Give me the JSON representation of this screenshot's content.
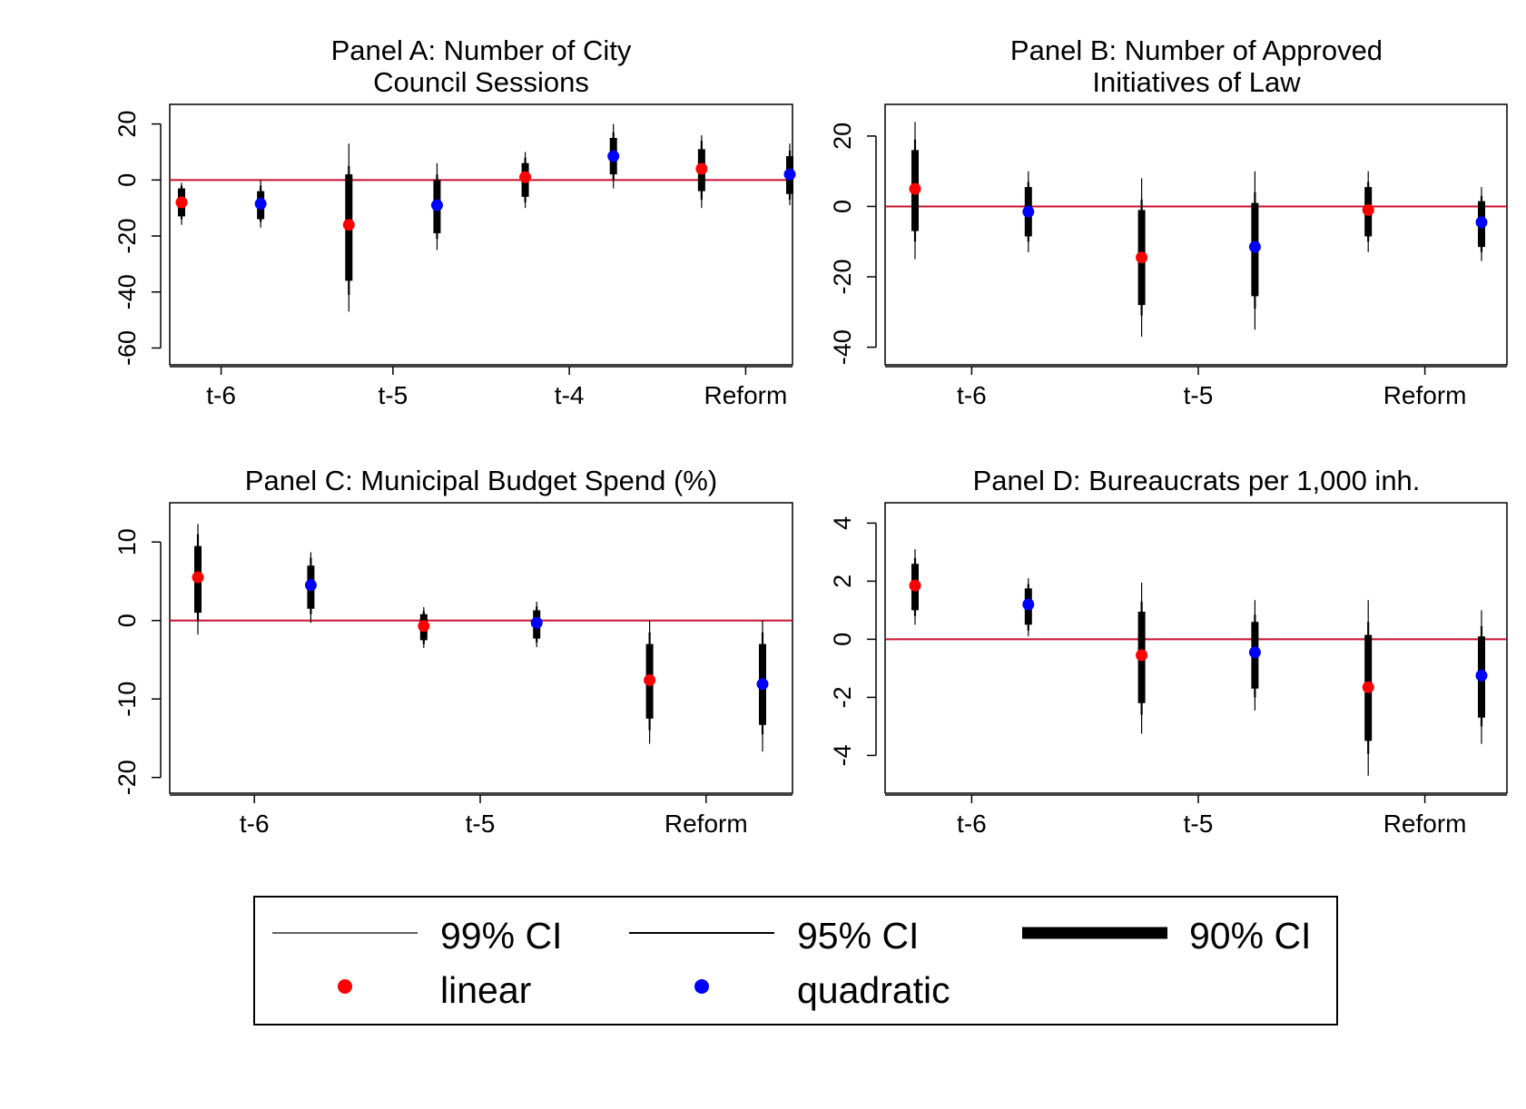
{
  "chart_data": [
    {
      "id": "A",
      "type": "coefficient-plot",
      "title": [
        "Panel A: Number of City",
        "Council Sessions"
      ],
      "xlabel": "",
      "ylabel": "",
      "categories": [
        "t-6",
        "t-5",
        "t-4",
        "Reform"
      ],
      "yticks": [
        20,
        0,
        -20,
        -40,
        -60
      ],
      "ylim": [
        -66,
        27
      ],
      "zero_line": 0,
      "series": [
        {
          "name": "linear",
          "color": "#ff0000",
          "points": [
            {
              "estimate": -8,
              "ci90": [
                -13,
                -3
              ],
              "ci95": [
                -14,
                -2
              ],
              "ci99": [
                -16,
                -1
              ]
            },
            {
              "estimate": -16,
              "ci90": [
                -36,
                2
              ],
              "ci95": [
                -41,
                5
              ],
              "ci99": [
                -47,
                13
              ]
            },
            {
              "estimate": 1,
              "ci90": [
                -6,
                6
              ],
              "ci95": [
                -8,
                8
              ],
              "ci99": [
                -10,
                10
              ]
            },
            {
              "estimate": 4,
              "ci90": [
                -4,
                11
              ],
              "ci95": [
                -7,
                14
              ],
              "ci99": [
                -10,
                16
              ]
            }
          ]
        },
        {
          "name": "quadratic",
          "color": "#0000ff",
          "points": [
            {
              "estimate": -8.5,
              "ci90": [
                -14,
                -4
              ],
              "ci95": [
                -15,
                -2
              ],
              "ci99": [
                -17,
                0
              ]
            },
            {
              "estimate": -9,
              "ci90": [
                -19,
                0
              ],
              "ci95": [
                -21,
                2
              ],
              "ci99": [
                -25,
                6
              ]
            },
            {
              "estimate": 8.5,
              "ci90": [
                2,
                15
              ],
              "ci95": [
                0,
                17
              ],
              "ci99": [
                -3,
                20
              ]
            },
            {
              "estimate": 2,
              "ci90": [
                -5,
                8.5
              ],
              "ci95": [
                -7,
                10.5
              ],
              "ci99": [
                -9,
                13
              ]
            }
          ]
        }
      ]
    },
    {
      "id": "B",
      "type": "coefficient-plot",
      "title": [
        "Panel B: Number of Approved",
        "Initiatives of Law"
      ],
      "xlabel": "",
      "ylabel": "",
      "categories": [
        "t-6",
        "t-5",
        "Reform"
      ],
      "yticks": [
        20,
        0,
        -20,
        -40
      ],
      "ylim": [
        -45,
        29
      ],
      "zero_line": 0,
      "series": [
        {
          "name": "linear",
          "color": "#ff0000",
          "points": [
            {
              "estimate": 5,
              "ci90": [
                -7,
                16
              ],
              "ci95": [
                -10,
                19
              ],
              "ci99": [
                -15,
                24
              ]
            },
            {
              "estimate": -14.5,
              "ci90": [
                -28,
                -1
              ],
              "ci95": [
                -31,
                2
              ],
              "ci99": [
                -37,
                8
              ]
            },
            {
              "estimate": -1,
              "ci90": [
                -8.5,
                5.5
              ],
              "ci95": [
                -10,
                7
              ],
              "ci99": [
                -13,
                10
              ]
            }
          ]
        },
        {
          "name": "quadratic",
          "color": "#0000ff",
          "points": [
            {
              "estimate": -1.5,
              "ci90": [
                -8.5,
                5.5
              ],
              "ci95": [
                -10,
                7
              ],
              "ci99": [
                -13,
                10
              ]
            },
            {
              "estimate": -11.5,
              "ci90": [
                -25.5,
                1
              ],
              "ci95": [
                -29,
                4
              ],
              "ci99": [
                -35,
                10
              ]
            },
            {
              "estimate": -4.5,
              "ci90": [
                -11.5,
                1.5
              ],
              "ci95": [
                -13,
                3
              ],
              "ci99": [
                -15.5,
                5.5
              ]
            }
          ]
        }
      ]
    },
    {
      "id": "C",
      "type": "coefficient-plot",
      "title": [
        "Panel C: Municipal Budget Spend (%)"
      ],
      "xlabel": "",
      "ylabel": "",
      "categories": [
        "t-6",
        "t-5",
        "Reform"
      ],
      "yticks": [
        10,
        0,
        -10,
        -20
      ],
      "ylim": [
        -22,
        15
      ],
      "zero_line": 0,
      "series": [
        {
          "name": "linear",
          "color": "#ff0000",
          "points": [
            {
              "estimate": 5.5,
              "ci90": [
                1,
                9.5
              ],
              "ci95": [
                0,
                11
              ],
              "ci99": [
                -1.8,
                12.3
              ]
            },
            {
              "estimate": -0.7,
              "ci90": [
                -2.5,
                0.8
              ],
              "ci95": [
                -3,
                1.2
              ],
              "ci99": [
                -3.5,
                1.7
              ]
            },
            {
              "estimate": -7.6,
              "ci90": [
                -12.5,
                -3
              ],
              "ci95": [
                -14,
                -1.5
              ],
              "ci99": [
                -15.7,
                0
              ]
            }
          ]
        },
        {
          "name": "quadratic",
          "color": "#0000ff",
          "points": [
            {
              "estimate": 4.5,
              "ci90": [
                1.5,
                7
              ],
              "ci95": [
                0.8,
                8
              ],
              "ci99": [
                -0.3,
                8.7
              ]
            },
            {
              "estimate": -0.3,
              "ci90": [
                -2.3,
                1.3
              ],
              "ci95": [
                -2.8,
                1.8
              ],
              "ci99": [
                -3.4,
                2.4
              ]
            },
            {
              "estimate": -8.1,
              "ci90": [
                -13.3,
                -3
              ],
              "ci95": [
                -14.5,
                -1.5
              ],
              "ci99": [
                -16.7,
                0
              ]
            }
          ]
        }
      ]
    },
    {
      "id": "D",
      "type": "coefficient-plot",
      "title": [
        "Panel D: Bureaucrats per 1,000 inh."
      ],
      "xlabel": "",
      "ylabel": "",
      "categories": [
        "t-6",
        "t-5",
        "Reform"
      ],
      "yticks": [
        4,
        2,
        0,
        -2,
        -4
      ],
      "ylim": [
        -5.3,
        4.7
      ],
      "zero_line": 0,
      "series": [
        {
          "name": "linear",
          "color": "#ff0000",
          "points": [
            {
              "estimate": 1.85,
              "ci90": [
                1,
                2.6
              ],
              "ci95": [
                0.8,
                2.8
              ],
              "ci99": [
                0.5,
                3.1
              ]
            },
            {
              "estimate": -0.55,
              "ci90": [
                -2.2,
                0.95
              ],
              "ci95": [
                -2.6,
                1.3
              ],
              "ci99": [
                -3.25,
                1.95
              ]
            },
            {
              "estimate": -1.65,
              "ci90": [
                -3.5,
                0.15
              ],
              "ci95": [
                -3.95,
                0.6
              ],
              "ci99": [
                -4.7,
                1.35
              ]
            }
          ]
        },
        {
          "name": "quadratic",
          "color": "#0000ff",
          "points": [
            {
              "estimate": 1.2,
              "ci90": [
                0.5,
                1.75
              ],
              "ci95": [
                0.3,
                1.9
              ],
              "ci99": [
                0.1,
                2.1
              ]
            },
            {
              "estimate": -0.45,
              "ci90": [
                -1.7,
                0.6
              ],
              "ci95": [
                -2,
                0.85
              ],
              "ci99": [
                -2.45,
                1.35
              ]
            },
            {
              "estimate": -1.25,
              "ci90": [
                -2.7,
                0.1
              ],
              "ci95": [
                -3,
                0.45
              ],
              "ci99": [
                -3.6,
                1
              ]
            }
          ]
        }
      ]
    }
  ],
  "legend": {
    "entries": [
      {
        "label": "99% CI",
        "kind": "thin-line"
      },
      {
        "label": "95% CI",
        "kind": "medium-line"
      },
      {
        "label": "90% CI",
        "kind": "thick-line"
      },
      {
        "label": "linear",
        "kind": "dot",
        "color": "#ff0000"
      },
      {
        "label": "quadratic",
        "kind": "dot",
        "color": "#0000ff"
      }
    ]
  },
  "colors": {
    "zero_line": "#c8102e",
    "ci": "#000000",
    "linear": "#ff0000",
    "quadratic": "#0000ff"
  }
}
